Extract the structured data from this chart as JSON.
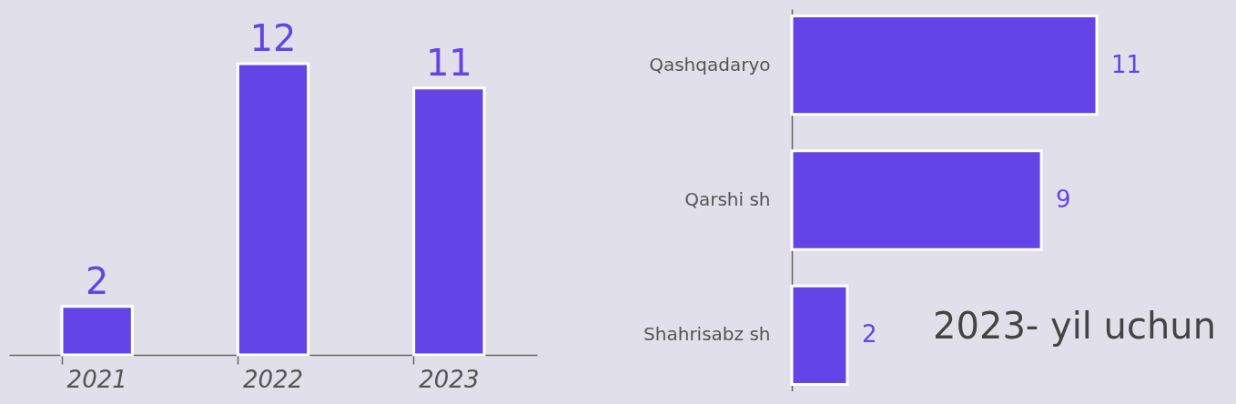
{
  "chart_data": [
    {
      "type": "bar",
      "categories": [
        "2021",
        "2022",
        "2023"
      ],
      "values": [
        2,
        12,
        11
      ],
      "color": "#6344e6",
      "data_labels": true,
      "grid": false
    },
    {
      "type": "bar",
      "orientation": "horizontal",
      "categories": [
        "Qashqadaryo",
        "Qarshi sh",
        "Shahrisabz sh"
      ],
      "values": [
        11,
        9,
        2
      ],
      "color": "#6344e6",
      "data_labels": true,
      "grid": false,
      "annotations": [
        "2023- yil uchun"
      ]
    }
  ]
}
